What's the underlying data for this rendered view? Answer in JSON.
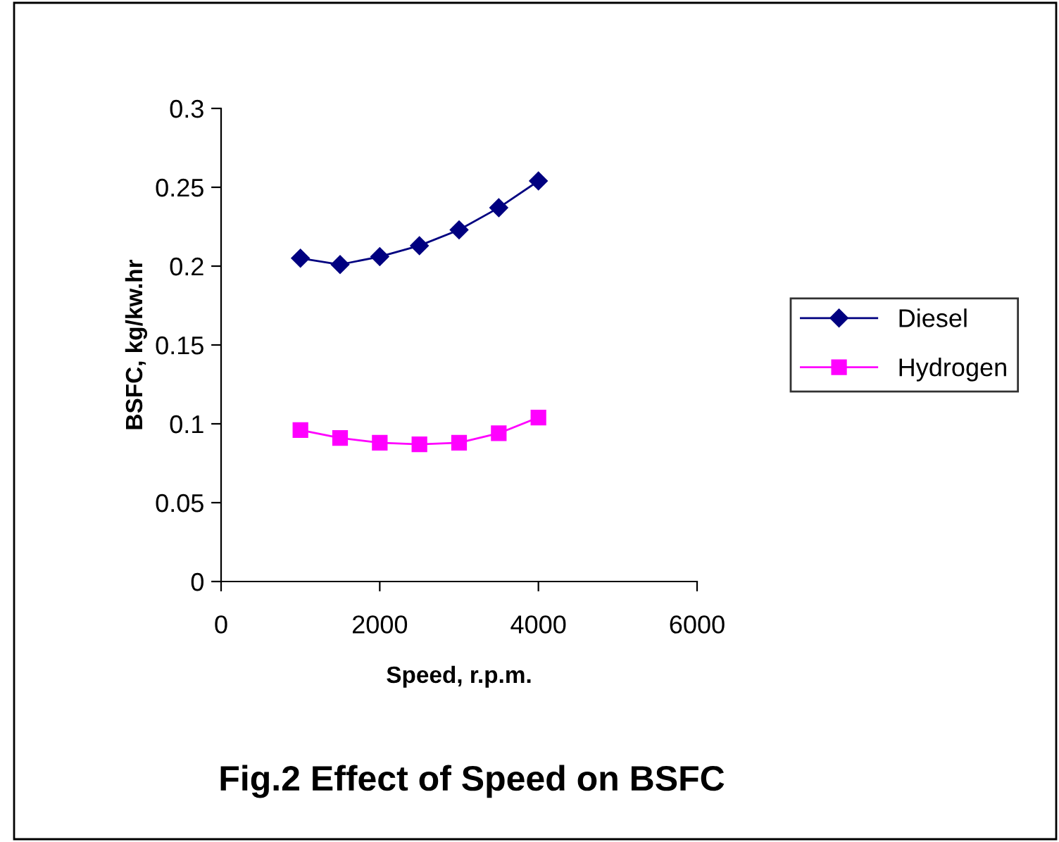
{
  "chart_data": {
    "type": "line",
    "title": "Fig.2 Effect of Speed on BSFC",
    "xlabel": "Speed, r.p.m.",
    "ylabel": "BSFC, kg/kw.hr",
    "x": [
      1000,
      1500,
      2000,
      2500,
      3000,
      3500,
      4000
    ],
    "series": [
      {
        "name": "Diesel",
        "color": "#000080",
        "marker": "diamond",
        "values": [
          0.205,
          0.201,
          0.206,
          0.213,
          0.223,
          0.237,
          0.254
        ]
      },
      {
        "name": "Hydrogen",
        "color": "#ff00ff",
        "marker": "square",
        "values": [
          0.096,
          0.091,
          0.088,
          0.087,
          0.088,
          0.094,
          0.104
        ]
      }
    ],
    "xlim": [
      0,
      6000
    ],
    "xticks": [
      0,
      2000,
      4000,
      6000
    ],
    "ylim": [
      0,
      0.3
    ],
    "yticks": [
      0,
      0.05,
      0.1,
      0.15,
      0.2,
      0.25,
      0.3
    ],
    "grid": false,
    "legend": "right",
    "line_style": "solid"
  }
}
